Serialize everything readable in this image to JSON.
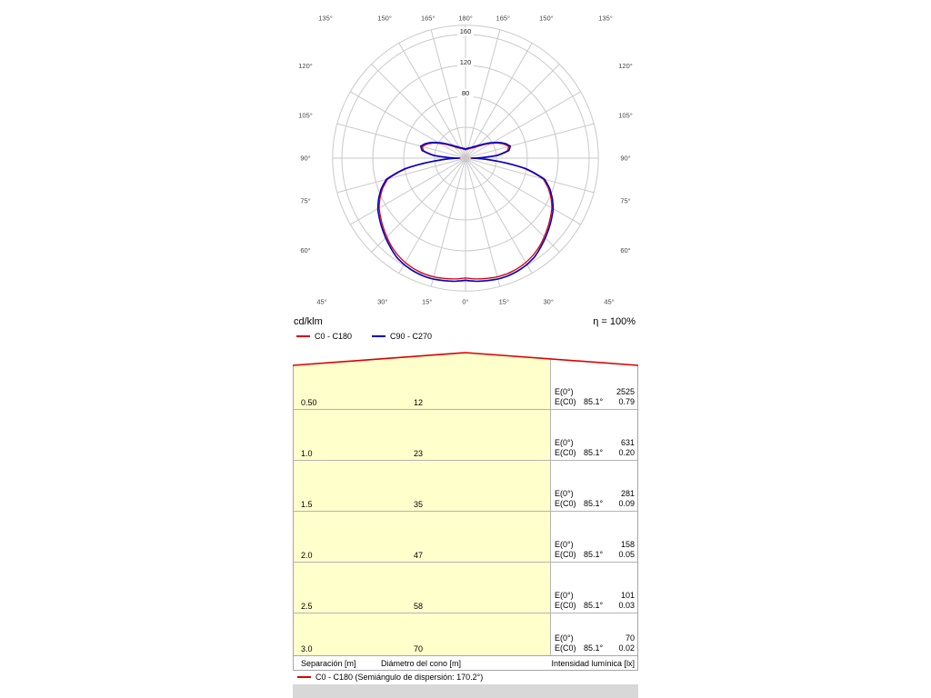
{
  "polar": {
    "unit_label": "cd/klm",
    "efficiency_label": "η = 100%",
    "legend": [
      {
        "label": "C0 - C180",
        "color": "#dd0000"
      },
      {
        "label": "C90 - C270",
        "color": "#0000cc"
      }
    ],
    "radial_tick_labels": [
      80,
      120,
      160
    ]
  },
  "cone": {
    "e0_label": "E(0°)",
    "ec0_label": "E(C0)",
    "rows": [
      {
        "separation": "0.50",
        "diameter": "12",
        "e0": "2525",
        "angle": "85.1°",
        "ec0": "0.79"
      },
      {
        "separation": "1.0",
        "diameter": "23",
        "e0": "631",
        "angle": "85.1°",
        "ec0": "0.20"
      },
      {
        "separation": "1.5",
        "diameter": "35",
        "e0": "281",
        "angle": "85.1°",
        "ec0": "0.09"
      },
      {
        "separation": "2.0",
        "diameter": "47",
        "e0": "158",
        "angle": "85.1°",
        "ec0": "0.05"
      },
      {
        "separation": "2.5",
        "diameter": "58",
        "e0": "101",
        "angle": "85.1°",
        "ec0": "0.03"
      },
      {
        "separation": "3.0",
        "diameter": "70",
        "e0": "70",
        "angle": "85.1°",
        "ec0": "0.02"
      }
    ],
    "footer": {
      "separation": "Separación [m]",
      "diameter": "Diámetro del cono [m]",
      "intensity": "Intensidad lumínica [lx]"
    },
    "legend_label": "C0 - C180 (Semiángulo de dispersión: 170.2°)",
    "legend_color": "#dd0000"
  },
  "chart_data": [
    {
      "type": "line",
      "subtype": "polar_photometric_distribution",
      "title": "Luminous intensity distribution curve",
      "units": "cd/klm",
      "efficiency": "η = 100%",
      "radial_grid": [
        40,
        80,
        120,
        160
      ],
      "radial_tick_labels": [
        80,
        120,
        160
      ],
      "outer_radius": 172,
      "angle_label_step_deg": 15,
      "angle_range_deg": [
        0,
        180
      ],
      "series": [
        {
          "name": "C0 - C180",
          "color": "#dd0000",
          "gamma_deg": [
            0,
            5,
            10,
            15,
            20,
            25,
            30,
            35,
            40,
            45,
            50,
            55,
            60,
            65,
            70,
            75,
            80,
            85,
            90,
            95,
            100,
            105,
            110,
            115,
            120,
            125,
            130,
            135,
            140,
            145,
            150,
            155,
            160,
            165,
            170,
            175,
            180
          ],
          "values": [
            155,
            157,
            158,
            159,
            159,
            158,
            156,
            153,
            149,
            144,
            139,
            134,
            129,
            122,
            114,
            104,
            78,
            36,
            7,
            40,
            55,
            58,
            53,
            46,
            38,
            31,
            25,
            21,
            18,
            16,
            15,
            14,
            13,
            12,
            12,
            11,
            11
          ]
        },
        {
          "name": "C90 - C270",
          "color": "#0000cc",
          "gamma_deg": [
            0,
            5,
            10,
            15,
            20,
            25,
            30,
            35,
            40,
            45,
            50,
            55,
            60,
            65,
            70,
            75,
            80,
            85,
            90,
            95,
            100,
            105,
            110,
            115,
            120,
            125,
            130,
            135,
            140,
            145,
            150,
            155,
            160,
            165,
            170,
            175,
            180
          ],
          "values": [
            158,
            160,
            161,
            162,
            162,
            161,
            159,
            156,
            151,
            146,
            141,
            136,
            131,
            124,
            116,
            106,
            80,
            38,
            8,
            42,
            57,
            60,
            55,
            48,
            40,
            33,
            27,
            23,
            20,
            18,
            16,
            15,
            14,
            13,
            13,
            12,
            12
          ]
        }
      ]
    },
    {
      "type": "table",
      "title": "Light cone diagram",
      "columns": [
        "Separación [m]",
        "Diámetro del cono [m]",
        "E(0°) [lx]",
        "E(C0) 85.1° [lx]"
      ],
      "rows": [
        [
          0.5,
          12,
          2525,
          0.79
        ],
        [
          1.0,
          23,
          631,
          0.2
        ],
        [
          1.5,
          35,
          281,
          0.09
        ],
        [
          2.0,
          47,
          158,
          0.05
        ],
        [
          2.5,
          58,
          101,
          0.03
        ],
        [
          3.0,
          70,
          70,
          0.02
        ]
      ],
      "beam_half_angle_deg": 85.1,
      "dispersion_semiangle_deg": 170.2,
      "legend": "C0 - C180 (Semiángulo de dispersión: 170.2°)"
    }
  ]
}
